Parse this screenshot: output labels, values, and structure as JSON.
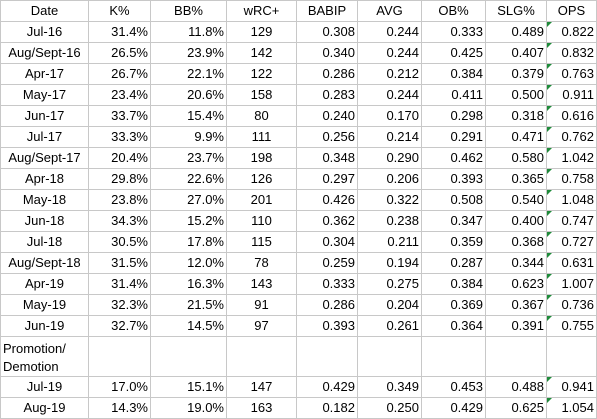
{
  "colors": {
    "grid_line": "#c8c8c8",
    "indicator_green": "#1e8b3a"
  },
  "headers": [
    "Date",
    "K%",
    "BB%",
    "wRC+",
    "BABIP",
    "AVG",
    "OB%",
    "SLG%",
    "OPS"
  ],
  "rows": [
    {
      "date": "Jul-16",
      "k": "31.4%",
      "bb": "11.8%",
      "wrc": "129",
      "babip": "0.308",
      "avg": "0.244",
      "ob": "0.333",
      "slg": "0.489",
      "ops": "0.822"
    },
    {
      "date": "Aug/Sept-16",
      "k": "26.5%",
      "bb": "23.9%",
      "wrc": "142",
      "babip": "0.340",
      "avg": "0.244",
      "ob": "0.425",
      "slg": "0.407",
      "ops": "0.832"
    },
    {
      "date": "Apr-17",
      "k": "26.7%",
      "bb": "22.1%",
      "wrc": "122",
      "babip": "0.286",
      "avg": "0.212",
      "ob": "0.384",
      "slg": "0.379",
      "ops": "0.763"
    },
    {
      "date": "May-17",
      "k": "23.4%",
      "bb": "20.6%",
      "wrc": "158",
      "babip": "0.283",
      "avg": "0.244",
      "ob": "0.411",
      "slg": "0.500",
      "ops": "0.911"
    },
    {
      "date": "Jun-17",
      "k": "33.7%",
      "bb": "15.4%",
      "wrc": "80",
      "babip": "0.240",
      "avg": "0.170",
      "ob": "0.298",
      "slg": "0.318",
      "ops": "0.616"
    },
    {
      "date": "Jul-17",
      "k": "33.3%",
      "bb": "9.9%",
      "wrc": "111",
      "babip": "0.256",
      "avg": "0.214",
      "ob": "0.291",
      "slg": "0.471",
      "ops": "0.762"
    },
    {
      "date": "Aug/Sept-17",
      "k": "20.4%",
      "bb": "23.7%",
      "wrc": "198",
      "babip": "0.348",
      "avg": "0.290",
      "ob": "0.462",
      "slg": "0.580",
      "ops": "1.042"
    },
    {
      "date": "Apr-18",
      "k": "29.8%",
      "bb": "22.6%",
      "wrc": "126",
      "babip": "0.297",
      "avg": "0.206",
      "ob": "0.393",
      "slg": "0.365",
      "ops": "0.758"
    },
    {
      "date": "May-18",
      "k": "23.8%",
      "bb": "27.0%",
      "wrc": "201",
      "babip": "0.426",
      "avg": "0.322",
      "ob": "0.508",
      "slg": "0.540",
      "ops": "1.048"
    },
    {
      "date": "Jun-18",
      "k": "34.3%",
      "bb": "15.2%",
      "wrc": "110",
      "babip": "0.362",
      "avg": "0.238",
      "ob": "0.347",
      "slg": "0.400",
      "ops": "0.747"
    },
    {
      "date": "Jul-18",
      "k": "30.5%",
      "bb": "17.8%",
      "wrc": "115",
      "babip": "0.304",
      "avg": "0.211",
      "ob": "0.359",
      "slg": "0.368",
      "ops": "0.727"
    },
    {
      "date": "Aug/Sept-18",
      "k": "31.5%",
      "bb": "12.0%",
      "wrc": "78",
      "babip": "0.259",
      "avg": "0.194",
      "ob": "0.287",
      "slg": "0.344",
      "ops": "0.631"
    },
    {
      "date": "Apr-19",
      "k": "31.4%",
      "bb": "16.3%",
      "wrc": "143",
      "babip": "0.333",
      "avg": "0.275",
      "ob": "0.384",
      "slg": "0.623",
      "ops": "1.007"
    },
    {
      "date": "May-19",
      "k": "32.3%",
      "bb": "21.5%",
      "wrc": "91",
      "babip": "0.286",
      "avg": "0.204",
      "ob": "0.369",
      "slg": "0.367",
      "ops": "0.736"
    },
    {
      "date": "Jun-19",
      "k": "32.7%",
      "bb": "14.5%",
      "wrc": "97",
      "babip": "0.393",
      "avg": "0.261",
      "ob": "0.364",
      "slg": "0.391",
      "ops": "0.755"
    }
  ],
  "separator_label": "Promotion/ Demotion",
  "rows_after": [
    {
      "date": "Jul-19",
      "k": "17.0%",
      "bb": "15.1%",
      "wrc": "147",
      "babip": "0.429",
      "avg": "0.349",
      "ob": "0.453",
      "slg": "0.488",
      "ops": "0.941"
    },
    {
      "date": "Aug-19",
      "k": "14.3%",
      "bb": "19.0%",
      "wrc": "163",
      "babip": "0.182",
      "avg": "0.250",
      "ob": "0.429",
      "slg": "0.625",
      "ops": "1.054"
    }
  ]
}
